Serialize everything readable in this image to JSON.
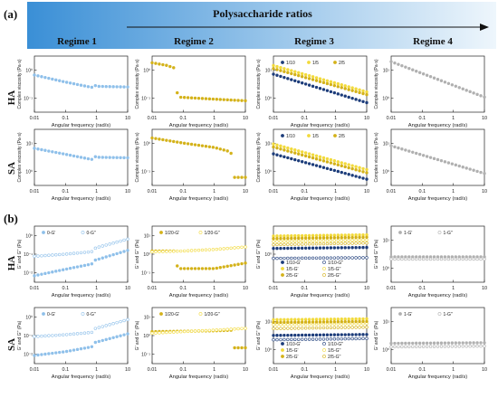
{
  "figure": {
    "panel_a_label": "(a)",
    "panel_b_label": "(b)",
    "banner_title": "Polysaccharide ratios",
    "regimes": [
      "Regime 1",
      "Regime 2",
      "Regime 3",
      "Regime 4"
    ],
    "row_labels": [
      "HA",
      "SA",
      "HA",
      "SA"
    ],
    "colors": {
      "banner_start": "#3a8fd6",
      "banner_end": "#eef6fc",
      "blue_light": "#8fc0ea",
      "gold": "#d4b21a",
      "yellow": "#f2da3c",
      "navy": "#1c3c7a",
      "gray": "#b0b0b0"
    }
  },
  "chart_data": [
    {
      "id": "a-HA-1",
      "type": "scatter",
      "xlabel": "Angular frequency (rad/s)",
      "ylabel": "Complex viscosity (Pa·s)",
      "xscale": "log",
      "yscale": "log",
      "xlim": [
        0.01,
        10
      ],
      "x_ticks": [
        "0.01",
        "0.1",
        "1",
        "10"
      ],
      "y_ticks": [
        "10⁻¹",
        "10⁰"
      ],
      "ylim": [
        0.1,
        3
      ],
      "series": [
        {
          "color": "#8fc0ea",
          "x": [
            0.01,
            0.1,
            0.7,
            0.75,
            1,
            10
          ],
          "y": [
            0.95,
            0.62,
            0.45,
            0.55,
            0.48,
            0.46
          ]
        }
      ]
    },
    {
      "id": "a-HA-2",
      "type": "scatter",
      "xlabel": "Angular frequency (rad/s)",
      "ylabel": "Complex viscosity (Pa·s)",
      "xscale": "log",
      "yscale": "log",
      "xlim": [
        0.01,
        10
      ],
      "x_ticks": [
        "0.01",
        "0.1",
        "1",
        "10"
      ],
      "y_ticks": [
        "10⁻¹",
        "10⁰"
      ],
      "ylim": [
        0.1,
        3
      ],
      "series": [
        {
          "color": "#d4b21a",
          "x": [
            0.01,
            0.03,
            0.06,
            0.065,
            1,
            10
          ],
          "y": [
            2.0,
            1.7,
            1.4,
            0.25,
            0.22,
            0.2
          ]
        }
      ]
    },
    {
      "id": "a-HA-3",
      "type": "scatter",
      "xlabel": "Angular frequency (rad/s)",
      "ylabel": "Complex viscosity (Pa·s)",
      "xscale": "log",
      "yscale": "log",
      "xlim": [
        0.01,
        10
      ],
      "x_ticks": [
        "0.01",
        "0.1",
        "1",
        "10"
      ],
      "y_ticks": [
        "10⁰",
        "10¹"
      ],
      "ylim": [
        0.5,
        30
      ],
      "legend": [
        "1/10",
        "1/5",
        "2/5"
      ],
      "series": [
        {
          "name": "1/10",
          "color": "#1c3c7a",
          "x": [
            0.01,
            10
          ],
          "y": [
            8,
            1
          ]
        },
        {
          "name": "1/5",
          "color": "#f2da3c",
          "x": [
            0.01,
            10
          ],
          "y": [
            15,
            2.2
          ]
        },
        {
          "name": "2/5",
          "color": "#d4b21a",
          "x": [
            0.01,
            10
          ],
          "y": [
            12,
            1.8
          ]
        }
      ]
    },
    {
      "id": "a-HA-4",
      "type": "scatter",
      "xlabel": "Angular frequency (rad/s)",
      "ylabel": "Complex viscosity (Pa·s)",
      "xscale": "log",
      "yscale": "log",
      "xlim": [
        0.01,
        10
      ],
      "x_ticks": [
        "0.01",
        "0.1",
        "1",
        "10"
      ],
      "y_ticks": [
        "10⁰",
        "10¹"
      ],
      "ylim": [
        0.5,
        30
      ],
      "series": [
        {
          "color": "#b0b0b0",
          "x": [
            0.01,
            10
          ],
          "y": [
            20,
            1.5
          ]
        }
      ]
    },
    {
      "id": "a-SA-1",
      "type": "scatter",
      "xlabel": "Angular frequency (rad/s)",
      "ylabel": "Complex viscosity (Pa·s)",
      "xscale": "log",
      "yscale": "log",
      "xlim": [
        0.01,
        10
      ],
      "x_ticks": [
        "0.01",
        "0.1",
        "1",
        "10"
      ],
      "y_ticks": [
        "10⁰",
        "10¹"
      ],
      "ylim": [
        2,
        30
      ],
      "series": [
        {
          "color": "#8fc0ea",
          "x": [
            0.01,
            0.1,
            0.7,
            0.75,
            1,
            10
          ],
          "y": [
            12,
            9,
            7,
            8.5,
            7.8,
            7.6
          ]
        }
      ]
    },
    {
      "id": "a-SA-2",
      "type": "scatter",
      "xlabel": "Angular frequency (rad/s)",
      "ylabel": "Complex viscosity (Pa·s)",
      "xscale": "log",
      "yscale": "log",
      "xlim": [
        0.01,
        10
      ],
      "x_ticks": [
        "0.01",
        "0.1",
        "1",
        "10"
      ],
      "y_ticks": [
        "10⁻¹",
        "10⁰"
      ],
      "ylim": [
        0.05,
        3
      ],
      "series": [
        {
          "color": "#d4b21a",
          "x": [
            0.01,
            0.1,
            1,
            3,
            4,
            4.2,
            10
          ],
          "y": [
            1.6,
            1.1,
            0.8,
            0.6,
            0.45,
            0.09,
            0.09
          ]
        }
      ]
    },
    {
      "id": "a-SA-3",
      "type": "scatter",
      "xlabel": "Angular frequency (rad/s)",
      "ylabel": "Complex viscosity (Pa·s)",
      "xscale": "log",
      "yscale": "log",
      "xlim": [
        0.01,
        10
      ],
      "x_ticks": [
        "0.01",
        "0.1",
        "1",
        "10"
      ],
      "y_ticks": [
        "10⁰",
        "10¹"
      ],
      "ylim": [
        0.3,
        30
      ],
      "legend": [
        "1/10",
        "1/5",
        "2/5"
      ],
      "series": [
        {
          "name": "1/10",
          "color": "#1c3c7a",
          "x": [
            0.01,
            10
          ],
          "y": [
            4,
            0.5
          ]
        },
        {
          "name": "1/5",
          "color": "#f2da3c",
          "x": [
            0.01,
            10
          ],
          "y": [
            9,
            1.1
          ]
        },
        {
          "name": "2/5",
          "color": "#d4b21a",
          "x": [
            0.01,
            10
          ],
          "y": [
            7,
            0.85
          ]
        }
      ]
    },
    {
      "id": "a-SA-4",
      "type": "scatter",
      "xlabel": "Angular frequency (rad/s)",
      "ylabel": "Complex viscosity (Pa·s)",
      "xscale": "log",
      "yscale": "log",
      "xlim": [
        0.01,
        10
      ],
      "x_ticks": [
        "0.01",
        "0.1",
        "1",
        "10"
      ],
      "y_ticks": [
        "10⁰",
        "10¹"
      ],
      "ylim": [
        0.5,
        30
      ],
      "series": [
        {
          "color": "#b0b0b0",
          "x": [
            0.01,
            10
          ],
          "y": [
            9,
            1.2
          ]
        }
      ]
    },
    {
      "id": "b-HA-1",
      "type": "scatter",
      "xlabel": "Angular frequency (rad/s)",
      "ylabel": "G' and G'' (Pa)",
      "xscale": "log",
      "yscale": "log",
      "xlim": [
        0.01,
        10
      ],
      "x_ticks": [
        "0.01",
        "0.1",
        "1",
        "10"
      ],
      "y_ticks": [
        "10⁻²",
        "10⁻¹",
        "10⁰"
      ],
      "ylim": [
        0.005,
        2
      ],
      "legend": [
        "0-G'",
        "0-G''"
      ],
      "series": [
        {
          "name": "0-G'",
          "color": "#8fc0ea",
          "x": [
            0.01,
            0.1,
            0.7,
            0.75,
            1,
            10
          ],
          "y": [
            0.01,
            0.02,
            0.035,
            0.05,
            0.055,
            0.15
          ]
        },
        {
          "name": "0-G''",
          "color": "#8fc0ea",
          "x": [
            0.01,
            0.1,
            0.7,
            0.75,
            1,
            10
          ],
          "y": [
            0.08,
            0.1,
            0.13,
            0.17,
            0.2,
            0.5
          ]
        }
      ]
    },
    {
      "id": "b-HA-2",
      "type": "scatter",
      "xlabel": "Angular frequency (rad/s)",
      "ylabel": "G' and G'' (Pa)",
      "xscale": "log",
      "yscale": "log",
      "xlim": [
        0.01,
        10
      ],
      "x_ticks": [
        "0.01",
        "0.1",
        "1",
        "10"
      ],
      "y_ticks": [
        "10⁻¹",
        "10⁰",
        "10¹"
      ],
      "ylim": [
        0.05,
        15
      ],
      "legend": [
        "1/20-G'",
        "1/20-G''"
      ],
      "series": [
        {
          "name": "1/20-G'",
          "color": "#d4b21a",
          "x": [
            0.01,
            0.06,
            0.065,
            1,
            10
          ],
          "y": [
            1.2,
            1.2,
            0.2,
            0.2,
            0.35
          ]
        },
        {
          "name": "1/20-G''",
          "color": "#f2da3c",
          "x": [
            0.01,
            0.1,
            1,
            10
          ],
          "y": [
            1.1,
            1.2,
            1.4,
            1.8
          ]
        }
      ]
    },
    {
      "id": "b-HA-3",
      "type": "scatter",
      "xlabel": "Angular frequency (rad/s)",
      "ylabel": "G' and G'' (Pa)",
      "xscale": "log",
      "yscale": "log",
      "xlim": [
        0.01,
        10
      ],
      "x_ticks": [
        "0.01",
        "0.1",
        "1",
        "10"
      ],
      "y_ticks": [
        "10⁰"
      ],
      "ylim": [
        0.3,
        3
      ],
      "legend": [
        "1/10-G'",
        "1/10-G''",
        "1/5-G'",
        "1/5-G''",
        "2/5-G'",
        "2/5-G''"
      ],
      "series": [
        {
          "name": "1/10-G'",
          "color": "#1c3c7a",
          "x": [
            0.01,
            10
          ],
          "y": [
            1.2,
            1.25
          ]
        },
        {
          "name": "1/10-G''",
          "color": "#1c3c7a",
          "x": [
            0.01,
            10
          ],
          "y": [
            0.8,
            0.82
          ]
        },
        {
          "name": "1/5-G'",
          "color": "#f2da3c",
          "x": [
            0.01,
            10
          ],
          "y": [
            2.0,
            2.1
          ]
        },
        {
          "name": "1/5-G''",
          "color": "#f2da3c",
          "x": [
            0.01,
            10
          ],
          "y": [
            1.6,
            1.7
          ]
        },
        {
          "name": "2/5-G'",
          "color": "#d4b21a",
          "x": [
            0.01,
            10
          ],
          "y": [
            1.8,
            1.9
          ]
        },
        {
          "name": "2/5-G''",
          "color": "#d4b21a",
          "x": [
            0.01,
            10
          ],
          "y": [
            1.4,
            1.5
          ]
        }
      ]
    },
    {
      "id": "b-HA-4",
      "type": "scatter",
      "xlabel": "Angular frequency (rad/s)",
      "ylabel": "G' and G'' (Pa)",
      "xscale": "log",
      "yscale": "log",
      "xlim": [
        0.01,
        10
      ],
      "x_ticks": [
        "0.01",
        "0.1",
        "1",
        "10"
      ],
      "y_ticks": [
        "10⁰",
        "10¹"
      ],
      "ylim": [
        0.3,
        30
      ],
      "legend": [
        "1-G'",
        "1-G''"
      ],
      "series": [
        {
          "name": "1-G'",
          "color": "#b0b0b0",
          "x": [
            0.01,
            10
          ],
          "y": [
            2.4,
            2.4
          ]
        },
        {
          "name": "1-G''",
          "color": "#b0b0b0",
          "x": [
            0.01,
            10
          ],
          "y": [
            2.0,
            2.0
          ]
        }
      ]
    },
    {
      "id": "b-SA-1",
      "type": "scatter",
      "xlabel": "Angular frequency (rad/s)",
      "ylabel": "G' and G'' (Pa)",
      "xscale": "log",
      "yscale": "log",
      "xlim": [
        0.01,
        10
      ],
      "x_ticks": [
        "0.01",
        "0.1",
        "1",
        "10"
      ],
      "y_ticks": [
        "10⁻²",
        "10⁻¹",
        "10⁰"
      ],
      "ylim": [
        0.005,
        2
      ],
      "legend": [
        "0-G'",
        "0-G''"
      ],
      "series": [
        {
          "name": "0-G'",
          "color": "#8fc0ea",
          "x": [
            0.01,
            0.1,
            0.7,
            0.75,
            1,
            10
          ],
          "y": [
            0.012,
            0.018,
            0.03,
            0.045,
            0.05,
            0.12
          ]
        },
        {
          "name": "0-G''",
          "color": "#8fc0ea",
          "x": [
            0.01,
            0.1,
            0.7,
            0.75,
            1,
            10
          ],
          "y": [
            0.09,
            0.11,
            0.14,
            0.2,
            0.22,
            0.55
          ]
        }
      ]
    },
    {
      "id": "b-SA-2",
      "type": "scatter",
      "xlabel": "Angular frequency (rad/s)",
      "ylabel": "G' and G'' (Pa)",
      "xscale": "log",
      "yscale": "log",
      "xlim": [
        0.01,
        10
      ],
      "x_ticks": [
        "0.01",
        "0.1",
        "1",
        "10"
      ],
      "y_ticks": [
        "10⁻¹",
        "10⁰",
        "10¹"
      ],
      "ylim": [
        0.05,
        15
      ],
      "legend": [
        "1/20-G'",
        "1/20-G''"
      ],
      "series": [
        {
          "name": "1/20-G'",
          "color": "#d4b21a",
          "x": [
            0.01,
            1,
            4,
            4.2,
            10
          ],
          "y": [
            1.3,
            1.4,
            1.5,
            0.25,
            0.25
          ]
        },
        {
          "name": "1/20-G''",
          "color": "#f2da3c",
          "x": [
            0.01,
            0.1,
            1,
            10
          ],
          "y": [
            1.1,
            1.3,
            1.5,
            1.8
          ]
        }
      ]
    },
    {
      "id": "b-SA-3",
      "type": "scatter",
      "xlabel": "Angular frequency (rad/s)",
      "ylabel": "G' and G'' (Pa)",
      "xscale": "log",
      "yscale": "log",
      "xlim": [
        0.01,
        10
      ],
      "x_ticks": [
        "0.01",
        "0.1",
        "1",
        "10"
      ],
      "y_ticks": [
        "10⁰",
        "10¹"
      ],
      "ylim": [
        0.5,
        20
      ],
      "legend": [
        "1/10-G'",
        "1/10-G''",
        "1/5-G'",
        "1/5-G''",
        "2/5-G'",
        "2/5-G''"
      ],
      "series": [
        {
          "name": "1/10-G'",
          "color": "#1c3c7a",
          "x": [
            0.01,
            10
          ],
          "y": [
            3.2,
            3.4
          ]
        },
        {
          "name": "1/10-G''",
          "color": "#1c3c7a",
          "x": [
            0.01,
            10
          ],
          "y": [
            2.4,
            2.6
          ]
        },
        {
          "name": "1/5-G'",
          "color": "#f2da3c",
          "x": [
            0.01,
            10
          ],
          "y": [
            9,
            9.5
          ]
        },
        {
          "name": "1/5-G''",
          "color": "#f2da3c",
          "x": [
            0.01,
            10
          ],
          "y": [
            6.5,
            7
          ]
        },
        {
          "name": "2/5-G'",
          "color": "#d4b21a",
          "x": [
            0.01,
            10
          ],
          "y": [
            7.5,
            8
          ]
        },
        {
          "name": "2/5-G''",
          "color": "#d4b21a",
          "x": [
            0.01,
            10
          ],
          "y": [
            5,
            5.5
          ]
        }
      ]
    },
    {
      "id": "b-SA-4",
      "type": "scatter",
      "xlabel": "Angular frequency (rad/s)",
      "ylabel": "G' and G'' (Pa)",
      "xscale": "log",
      "yscale": "log",
      "xlim": [
        0.01,
        10
      ],
      "x_ticks": [
        "0.01",
        "0.1",
        "1",
        "10"
      ],
      "y_ticks": [
        "10⁰",
        "10¹"
      ],
      "ylim": [
        0.5,
        30
      ],
      "legend": [
        "1-G'",
        "1-G''"
      ],
      "series": [
        {
          "name": "1-G'",
          "color": "#b0b0b0",
          "x": [
            0.01,
            10
          ],
          "y": [
            2.2,
            2.3
          ]
        },
        {
          "name": "1-G''",
          "color": "#b0b0b0",
          "x": [
            0.01,
            10
          ],
          "y": [
            1.7,
            1.8
          ]
        }
      ]
    }
  ]
}
